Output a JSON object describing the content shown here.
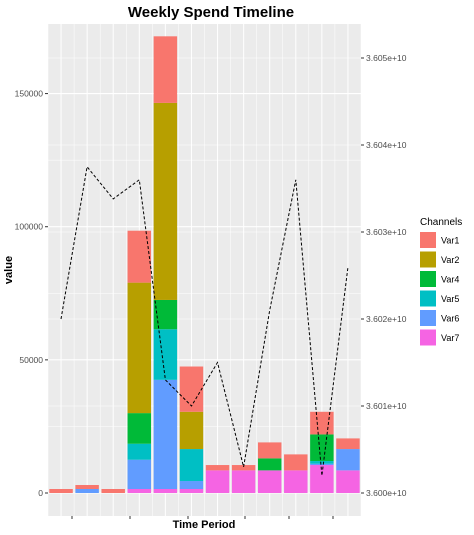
{
  "chart_data": {
    "type": "bar",
    "stacked": true,
    "title": "Weekly Spend Timeline",
    "xlabel": "Time Period",
    "ylabel": "value",
    "n_periods": 12,
    "ylim": [
      0,
      175000
    ],
    "yticks": [
      0,
      50000,
      100000,
      150000
    ],
    "ytick_labels": [
      "0",
      "50000",
      "100000",
      "150000"
    ],
    "legend": {
      "title": "Channels",
      "placement": "right"
    },
    "series": [
      {
        "name": "Var7",
        "color": "#F564E3",
        "values": [
          0,
          0,
          0,
          1500,
          1500,
          1500,
          8500,
          8500,
          8500,
          8500,
          10500,
          8500
        ]
      },
      {
        "name": "Var6",
        "color": "#619CFF",
        "values": [
          0,
          1500,
          0,
          11000,
          41000,
          3000,
          0,
          0,
          0,
          0,
          500,
          8000
        ]
      },
      {
        "name": "Var5",
        "color": "#00BFC4",
        "values": [
          0,
          0,
          0,
          6000,
          19000,
          12000,
          0,
          0,
          0,
          0,
          1000,
          0
        ]
      },
      {
        "name": "Var4",
        "color": "#00BA38",
        "values": [
          0,
          0,
          0,
          11500,
          11000,
          0,
          0,
          0,
          4500,
          0,
          10000,
          0
        ]
      },
      {
        "name": "Var2",
        "color": "#B79F00",
        "values": [
          0,
          0,
          0,
          49000,
          74000,
          14000,
          0,
          0,
          0,
          0,
          0,
          0
        ]
      },
      {
        "name": "Var1",
        "color": "#F8766D",
        "values": [
          1500,
          1500,
          1500,
          19500,
          25000,
          17000,
          2000,
          2000,
          6000,
          6000,
          8500,
          4000
        ]
      }
    ],
    "legend_order": [
      "Var1",
      "Var2",
      "Var4",
      "Var5",
      "Var6",
      "Var7"
    ],
    "secondary_axis": {
      "line_style": "dashed",
      "ylim": [
        35999000000,
        36055000000
      ],
      "ticks": [
        36000000000,
        36010000000,
        36020000000,
        36030000000,
        36040000000,
        36050000000
      ],
      "tick_labels": [
        "3.600e+10",
        "3.601e+10",
        "3.602e+10",
        "3.603e+10",
        "3.604e+10",
        "3.605e+10"
      ],
      "values": [
        36020000000,
        36037500000,
        36033800000,
        36036000000,
        36013000000,
        36010000000,
        36015000000,
        36003000000,
        36021000000,
        36036000000,
        36002000000,
        36026000000
      ]
    }
  }
}
